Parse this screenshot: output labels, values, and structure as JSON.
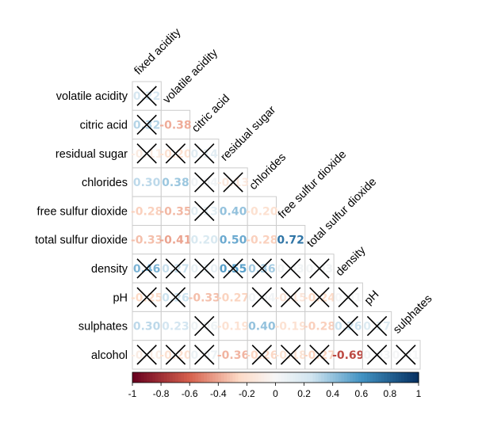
{
  "chart_data": {
    "type": "heatmap",
    "variables": [
      "fixed acidity",
      "volatile acidity",
      "citric acid",
      "residual sugar",
      "chlorides",
      "free sulfur dioxide",
      "total sulfur dioxide",
      "density",
      "pH",
      "sulphates",
      "alcohol"
    ],
    "cells": [
      {
        "row": "volatile acidity",
        "col": "fixed acidity",
        "value": 0.22,
        "label": "0.22",
        "crossed": true
      },
      {
        "row": "citric acid",
        "col": "fixed acidity",
        "value": 0.32,
        "label": "0.32",
        "crossed": true
      },
      {
        "row": "citric acid",
        "col": "volatile acidity",
        "value": -0.38,
        "label": "-0.38",
        "crossed": false
      },
      {
        "row": "residual sugar",
        "col": "fixed acidity",
        "value": -0.11,
        "label": "-0.11",
        "crossed": true
      },
      {
        "row": "residual sugar",
        "col": "volatile acidity",
        "value": -0.2,
        "label": "-0.20",
        "crossed": true
      },
      {
        "row": "residual sugar",
        "col": "citric acid",
        "value": 0.14,
        "label": "0.14",
        "crossed": true
      },
      {
        "row": "chlorides",
        "col": "fixed acidity",
        "value": 0.3,
        "label": "0.30",
        "crossed": false
      },
      {
        "row": "chlorides",
        "col": "volatile acidity",
        "value": 0.38,
        "label": "0.38",
        "crossed": false
      },
      {
        "row": "chlorides",
        "col": "citric acid",
        "value": 0.04,
        "label": "0.04",
        "crossed": true
      },
      {
        "row": "chlorides",
        "col": "residual sugar",
        "value": -0.13,
        "label": "-0.13",
        "crossed": true
      },
      {
        "row": "free sulfur dioxide",
        "col": "fixed acidity",
        "value": -0.28,
        "label": "-0.28",
        "crossed": false
      },
      {
        "row": "free sulfur dioxide",
        "col": "volatile acidity",
        "value": -0.35,
        "label": "-0.35",
        "crossed": false
      },
      {
        "row": "free sulfur dioxide",
        "col": "citric acid",
        "value": 0.13,
        "label": "0.13",
        "crossed": true
      },
      {
        "row": "free sulfur dioxide",
        "col": "residual sugar",
        "value": 0.4,
        "label": "0.40",
        "crossed": false
      },
      {
        "row": "free sulfur dioxide",
        "col": "chlorides",
        "value": -0.2,
        "label": "-0.20",
        "crossed": false
      },
      {
        "row": "total sulfur dioxide",
        "col": "fixed acidity",
        "value": -0.33,
        "label": "-0.33",
        "crossed": false
      },
      {
        "row": "total sulfur dioxide",
        "col": "volatile acidity",
        "value": -0.41,
        "label": "-0.41",
        "crossed": false
      },
      {
        "row": "total sulfur dioxide",
        "col": "citric acid",
        "value": 0.2,
        "label": "0.20",
        "crossed": false
      },
      {
        "row": "total sulfur dioxide",
        "col": "residual sugar",
        "value": 0.5,
        "label": "0.50",
        "crossed": false
      },
      {
        "row": "total sulfur dioxide",
        "col": "chlorides",
        "value": -0.28,
        "label": "-0.28",
        "crossed": false
      },
      {
        "row": "total sulfur dioxide",
        "col": "free sulfur dioxide",
        "value": 0.72,
        "label": "0.72",
        "crossed": false
      },
      {
        "row": "density",
        "col": "fixed acidity",
        "value": 0.46,
        "label": "0.46",
        "crossed": true
      },
      {
        "row": "density",
        "col": "volatile acidity",
        "value": 0.27,
        "label": "0.27",
        "crossed": true
      },
      {
        "row": "density",
        "col": "citric acid",
        "value": 0.1,
        "label": "0.10",
        "crossed": true
      },
      {
        "row": "density",
        "col": "residual sugar",
        "value": 0.55,
        "label": "0.55",
        "crossed": true
      },
      {
        "row": "density",
        "col": "chlorides",
        "value": 0.36,
        "label": "0.36",
        "crossed": true
      },
      {
        "row": "density",
        "col": "free sulfur dioxide",
        "value": 0.03,
        "label": "0.03",
        "crossed": true
      },
      {
        "row": "density",
        "col": "total sulfur dioxide",
        "value": 0.03,
        "label": "0.03",
        "crossed": true
      },
      {
        "row": "pH",
        "col": "fixed acidity",
        "value": -0.25,
        "label": "-0.25",
        "crossed": true
      },
      {
        "row": "pH",
        "col": "volatile acidity",
        "value": 0.26,
        "label": "0.26",
        "crossed": true
      },
      {
        "row": "pH",
        "col": "citric acid",
        "value": -0.33,
        "label": "-0.33",
        "crossed": false
      },
      {
        "row": "pH",
        "col": "residual sugar",
        "value": -0.27,
        "label": "-0.27",
        "crossed": false
      },
      {
        "row": "pH",
        "col": "chlorides",
        "value": 0.04,
        "label": "0.04",
        "crossed": true
      },
      {
        "row": "pH",
        "col": "free sulfur dioxide",
        "value": -0.15,
        "label": "-0.15",
        "crossed": true
      },
      {
        "row": "pH",
        "col": "total sulfur dioxide",
        "value": -0.24,
        "label": "-0.24",
        "crossed": true
      },
      {
        "row": "pH",
        "col": "density",
        "value": 0.01,
        "label": "0.01",
        "crossed": true
      },
      {
        "row": "sulphates",
        "col": "fixed acidity",
        "value": 0.3,
        "label": "0.30",
        "crossed": false
      },
      {
        "row": "sulphates",
        "col": "volatile acidity",
        "value": 0.23,
        "label": "0.23",
        "crossed": false
      },
      {
        "row": "sulphates",
        "col": "citric acid",
        "value": 0.06,
        "label": "0.06",
        "crossed": true
      },
      {
        "row": "sulphates",
        "col": "residual sugar",
        "value": -0.19,
        "label": "-0.19",
        "crossed": false
      },
      {
        "row": "sulphates",
        "col": "chlorides",
        "value": 0.4,
        "label": "0.40",
        "crossed": false
      },
      {
        "row": "sulphates",
        "col": "free sulfur dioxide",
        "value": -0.19,
        "label": "-0.19",
        "crossed": false
      },
      {
        "row": "sulphates",
        "col": "total sulfur dioxide",
        "value": -0.28,
        "label": "-0.28",
        "crossed": false
      },
      {
        "row": "sulphates",
        "col": "density",
        "value": 0.26,
        "label": "0.26",
        "crossed": true
      },
      {
        "row": "sulphates",
        "col": "pH",
        "value": 0.17,
        "label": "0.17",
        "crossed": true
      },
      {
        "row": "alcohol",
        "col": "fixed acidity",
        "value": -0.1,
        "label": "-0.10",
        "crossed": true
      },
      {
        "row": "alcohol",
        "col": "volatile acidity",
        "value": -0.2,
        "label": "-0.20",
        "crossed": true
      },
      {
        "row": "alcohol",
        "col": "citric acid",
        "value": 0.07,
        "label": "0.07",
        "crossed": true
      },
      {
        "row": "alcohol",
        "col": "residual sugar",
        "value": -0.36,
        "label": "-0.36",
        "crossed": false
      },
      {
        "row": "alcohol",
        "col": "chlorides",
        "value": -0.26,
        "label": "-0.26",
        "crossed": true
      },
      {
        "row": "alcohol",
        "col": "free sulfur dioxide",
        "value": -0.18,
        "label": "-0.18",
        "crossed": true
      },
      {
        "row": "alcohol",
        "col": "total sulfur dioxide",
        "value": -0.27,
        "label": "-0.27",
        "crossed": true
      },
      {
        "row": "alcohol",
        "col": "density",
        "value": -0.69,
        "label": "-0.69",
        "crossed": false
      },
      {
        "row": "alcohol",
        "col": "pH",
        "value": 0.03,
        "label": "0.03",
        "crossed": true
      },
      {
        "row": "alcohol",
        "col": "sulphates",
        "value": 0.01,
        "label": "0.01",
        "crossed": true
      }
    ],
    "colorbar": {
      "range": [
        -1,
        1
      ],
      "ticks": [
        "-1",
        "-0.8",
        "-0.6",
        "-0.4",
        "-0.2",
        "0",
        "0.2",
        "0.4",
        "0.6",
        "0.8",
        "1"
      ]
    },
    "colors": {
      "neg_strong": "#67001F",
      "neg_mid": "#D6604D",
      "neg_light": "#FDDBC7",
      "neutral": "#F7F7F7",
      "pos_light": "#D1E5F0",
      "pos_mid": "#4393C3",
      "pos_strong": "#053061",
      "grid": "#CCCCCC",
      "cross": "#000000"
    }
  }
}
